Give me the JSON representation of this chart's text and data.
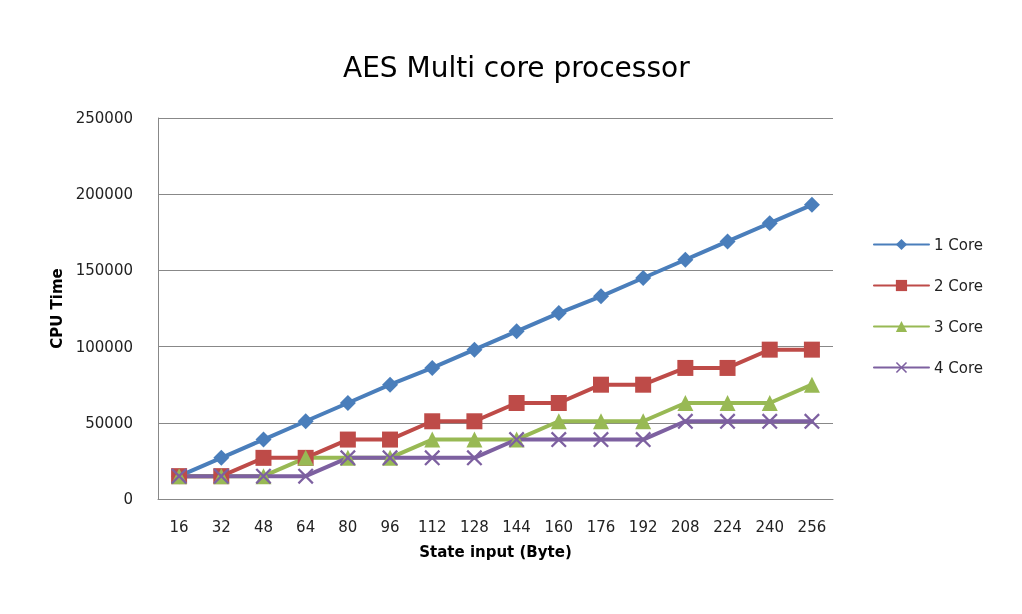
{
  "chart_data": {
    "type": "line",
    "title": "AES Multi core processor",
    "xlabel": "State input (Byte)",
    "ylabel": "CPU Time",
    "categories": [
      "16",
      "32",
      "48",
      "64",
      "80",
      "96",
      "112",
      "128",
      "144",
      "160",
      "176",
      "192",
      "208",
      "224",
      "240",
      "256"
    ],
    "series": [
      {
        "name": "1 Core",
        "color": "#4a7ebb",
        "marker": "diamond",
        "values": [
          15000,
          27000,
          39000,
          51000,
          63000,
          75000,
          86000,
          98000,
          110000,
          122000,
          133000,
          145000,
          157000,
          169000,
          181000,
          193000
        ]
      },
      {
        "name": "2 Core",
        "color": "#be4b48",
        "marker": "square",
        "values": [
          15000,
          15000,
          27000,
          27000,
          39000,
          39000,
          51000,
          51000,
          63000,
          63000,
          75000,
          75000,
          86000,
          86000,
          98000,
          98000
        ]
      },
      {
        "name": "3 Core",
        "color": "#98b954",
        "marker": "triangle",
        "values": [
          15000,
          15000,
          15000,
          27000,
          27000,
          27000,
          39000,
          39000,
          39000,
          51000,
          51000,
          51000,
          63000,
          63000,
          63000,
          75000
        ]
      },
      {
        "name": "4 Core",
        "color": "#7d60a0",
        "marker": "cross",
        "values": [
          15000,
          15000,
          15000,
          15000,
          27000,
          27000,
          27000,
          27000,
          39000,
          39000,
          39000,
          39000,
          51000,
          51000,
          51000,
          51000
        ]
      }
    ],
    "ylim": [
      0,
      250000
    ],
    "yticks": [
      0,
      50000,
      100000,
      150000,
      200000,
      250000
    ],
    "grid": "y",
    "legend": "right",
    "line_style": "solid"
  }
}
